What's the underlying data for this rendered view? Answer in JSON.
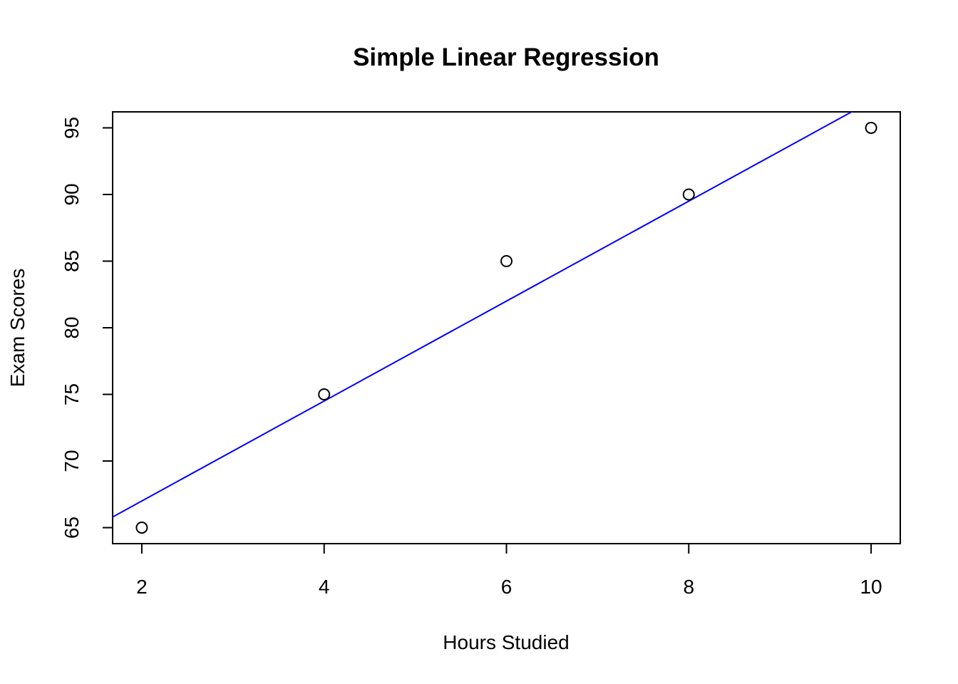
{
  "chart_data": {
    "type": "scatter",
    "title": "Simple Linear Regression",
    "xlabel": "Hours Studied",
    "ylabel": "Exam Scores",
    "x": [
      2,
      4,
      6,
      8,
      10
    ],
    "values": [
      65,
      75,
      85,
      90,
      95
    ],
    "color": "#000000",
    "regression_line": {
      "intercept": 59.5,
      "slope": 3.75,
      "color": "#0000ff"
    },
    "xlim": [
      1.68,
      10.32
    ],
    "xticks": [
      2,
      4,
      6,
      8,
      10
    ],
    "ylim": [
      63.8,
      96.2
    ],
    "yticks": [
      65,
      70,
      75,
      80,
      85,
      90,
      95
    ]
  }
}
